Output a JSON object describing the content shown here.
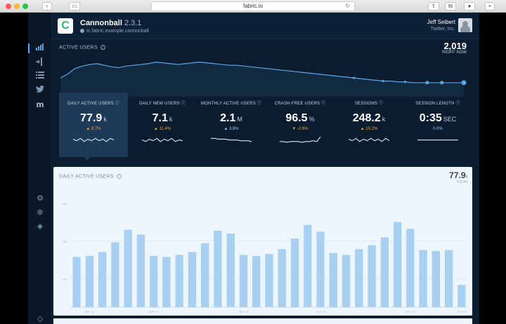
{
  "browser": {
    "url": "fabric.io"
  },
  "app": {
    "logo_letter": "C",
    "name": "Cannonball",
    "version": "2.3.1",
    "bundle_id": "io.fabric.example.cannonball"
  },
  "user": {
    "name": "Jeff Seibert",
    "org": "Twitter, Inc."
  },
  "sidebar": {
    "items": [
      "analytics-icon",
      "beta-icon",
      "list-icon",
      "twitter-icon",
      "mopub-icon",
      "settings-icon",
      "add-icon",
      "shield-icon",
      "layers-icon"
    ]
  },
  "active_users": {
    "label": "ACTIVE USERS",
    "count": "2,019",
    "sub": "RIGHT NOW"
  },
  "metrics": [
    {
      "label": "DAILY ACTIVE USERS",
      "value": "77.9",
      "unit": "k",
      "change": "▲ 8.7%",
      "dir": "up",
      "spark": [
        5,
        3,
        6,
        2,
        5,
        3,
        6,
        3,
        5,
        2,
        6,
        4
      ]
    },
    {
      "label": "DAILY NEW USERS",
      "value": "7.1",
      "unit": "k",
      "change": "▲ 11.4%",
      "dir": "up",
      "spark": [
        4,
        2,
        5,
        3,
        6,
        2,
        5,
        3,
        6,
        2,
        4,
        3
      ]
    },
    {
      "label": "MONTHLY ACTIVE USERS",
      "value": "2.1",
      "unit": "M",
      "change": "▲ 3.8%",
      "dir": "up-good",
      "spark": [
        6,
        6,
        5,
        5,
        5,
        4,
        4,
        4,
        3,
        3,
        3,
        2
      ]
    },
    {
      "label": "CRASH-FREE USERS",
      "value": "96.5",
      "unit": "%",
      "change": "▼ -2.6%",
      "dir": "down",
      "spark": [
        2,
        2,
        1,
        2,
        2,
        2,
        1,
        2,
        2,
        3,
        2,
        8
      ]
    },
    {
      "label": "SESSIONS",
      "value": "248.2",
      "unit": "k",
      "change": "▲ 10.2%",
      "dir": "up",
      "spark": [
        5,
        3,
        6,
        2,
        5,
        3,
        6,
        3,
        5,
        2,
        6,
        3
      ]
    },
    {
      "label": "SESSION LENGTH",
      "value": "0:35",
      "unit": "SEC",
      "change": "0.0%",
      "dir": "up-good",
      "spark": [
        4,
        4,
        4,
        4,
        4,
        4,
        4,
        4,
        4,
        4,
        4,
        4
      ]
    }
  ],
  "chart_panel": {
    "title": "DAILY ACTIVE USERS",
    "value": "77.9",
    "unit": "k",
    "sub": "TODAY"
  },
  "chart_data": {
    "type": "bar",
    "ylim": [
      0,
      100
    ],
    "yticks": [
      "30K",
      "20K",
      "10K"
    ],
    "xlabels": [
      "SEP 18",
      "SEP 21",
      "SEP 28",
      "OCT 05",
      "OCT 12",
      "OCT 19"
    ],
    "values": [
      52,
      53,
      57,
      67,
      80,
      75,
      53,
      52,
      54,
      57,
      66,
      79,
      76,
      54,
      53,
      55,
      60,
      71,
      85,
      78,
      56,
      54,
      60,
      64,
      72,
      88,
      81,
      59,
      58,
      59,
      23
    ]
  },
  "realtime": {
    "values": [
      22,
      27,
      34,
      37,
      39,
      40,
      38,
      36,
      35,
      37,
      38,
      39,
      40,
      42,
      41,
      40,
      39,
      40,
      41,
      42,
      41,
      40,
      39,
      38,
      38,
      37,
      36,
      35,
      34,
      33,
      32,
      31,
      30,
      29,
      28,
      27,
      26,
      25,
      24,
      23,
      22,
      21,
      20,
      19,
      18,
      18,
      17,
      17,
      16,
      16,
      16,
      16,
      16,
      16,
      16,
      16
    ]
  }
}
